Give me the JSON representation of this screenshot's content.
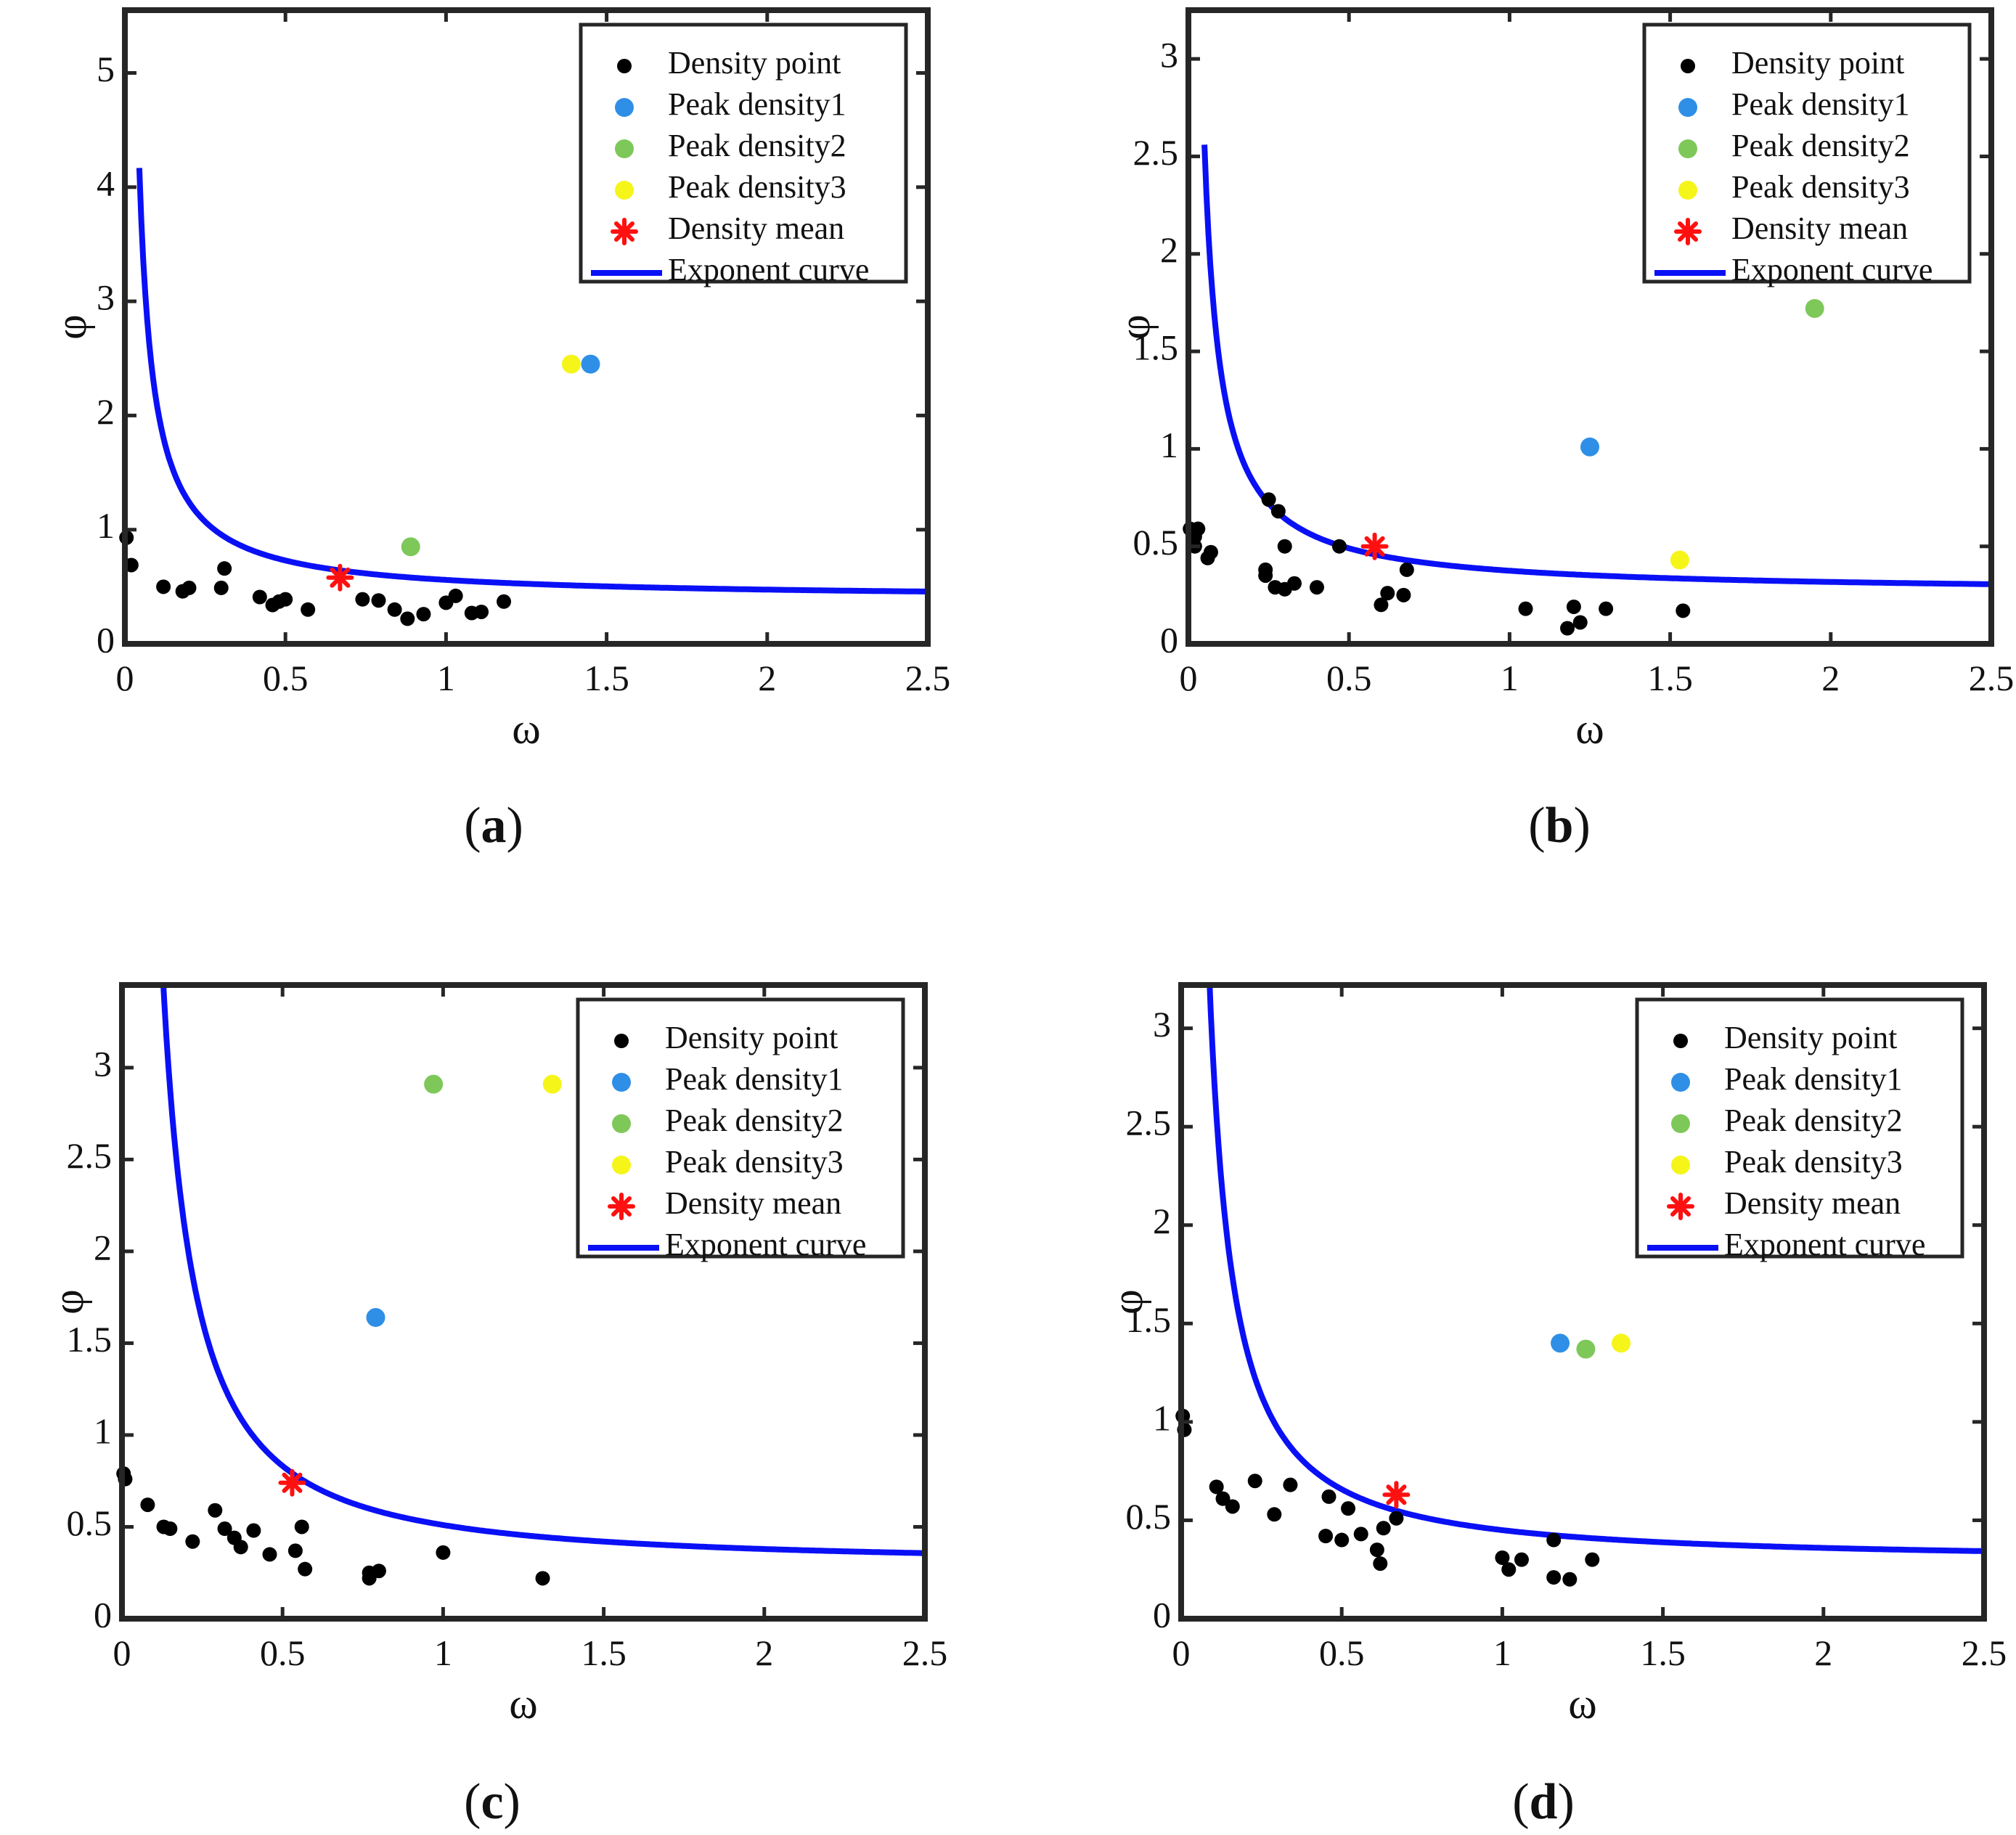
{
  "chart_data": [
    {
      "type": "scatter",
      "panel_label": "a",
      "xlabel": "ω",
      "ylabel": "φ",
      "xlim": [
        0,
        2.5
      ],
      "ylim": [
        0,
        5.55
      ],
      "x_ticks": [
        "0",
        "0.5",
        "1",
        "1.5",
        "2",
        "2.5"
      ],
      "x_tick_values": [
        0,
        0.5,
        1,
        1.5,
        2,
        2.5
      ],
      "y_ticks": [
        "0",
        "1",
        "2",
        "3",
        "4",
        "5"
      ],
      "y_tick_values": [
        0,
        1,
        2,
        3,
        4,
        5
      ],
      "legend": {
        "position": "top-right",
        "entries": [
          "Density point",
          "Peak density1",
          "Peak density2",
          "Peak density3",
          "Density mean",
          "Exponent curve"
        ]
      },
      "series": [
        {
          "name": "Density point",
          "marker": "dot",
          "color": "#000000",
          "x": [
            0.005,
            0.02,
            0.12,
            0.18,
            0.2,
            0.3,
            0.31,
            0.42,
            0.46,
            0.48,
            0.5,
            0.57,
            0.74,
            0.79,
            0.84,
            0.88,
            0.93,
            1.0,
            1.03,
            1.08,
            1.11,
            1.18
          ],
          "y": [
            0.93,
            0.69,
            0.5,
            0.46,
            0.49,
            0.49,
            0.66,
            0.41,
            0.34,
            0.37,
            0.39,
            0.3,
            0.39,
            0.38,
            0.3,
            0.22,
            0.26,
            0.36,
            0.42,
            0.27,
            0.28,
            0.37
          ]
        },
        {
          "name": "Peak density1",
          "marker": "dot",
          "color": "#2f8fe6",
          "x": [
            1.45
          ],
          "y": [
            2.45
          ]
        },
        {
          "name": "Peak density2",
          "marker": "dot",
          "color": "#7ec85a",
          "x": [
            0.89
          ],
          "y": [
            0.85
          ]
        },
        {
          "name": "Peak density3",
          "marker": "dot",
          "color": "#f5f51a",
          "x": [
            1.39
          ],
          "y": [
            2.45
          ]
        },
        {
          "name": "Density mean",
          "marker": "asterisk",
          "color": "#ff1010",
          "x": [
            0.67
          ],
          "y": [
            0.58
          ]
        },
        {
          "name": "Exponent curve",
          "marker": "line",
          "color": "#0a10f5",
          "curve": {
            "a": 0.17,
            "b": 0.39,
            "p": 1.0,
            "x_start": 0.045,
            "x_end": 2.5
          }
        }
      ]
    },
    {
      "type": "scatter",
      "panel_label": "b",
      "xlabel": "ω",
      "ylabel": "φ",
      "xlim": [
        0,
        2.5
      ],
      "ylim": [
        0,
        3.25
      ],
      "x_ticks": [
        "0",
        "0.5",
        "1",
        "1.5",
        "2",
        "2.5"
      ],
      "x_tick_values": [
        0,
        0.5,
        1,
        1.5,
        2,
        2.5
      ],
      "y_ticks": [
        "0",
        "0.5",
        "1",
        "1.5",
        "2",
        "2.5",
        "3"
      ],
      "y_tick_values": [
        0,
        0.5,
        1,
        1.5,
        2,
        2.5,
        3
      ],
      "legend": {
        "position": "top-right",
        "entries": [
          "Density point",
          "Peak density1",
          "Peak density2",
          "Peak density3",
          "Density mean",
          "Exponent curve"
        ]
      },
      "series": [
        {
          "name": "Density point",
          "marker": "dot",
          "color": "#000000",
          "x": [
            0.005,
            0.02,
            0.03,
            0.02,
            0.06,
            0.07,
            0.24,
            0.24,
            0.25,
            0.27,
            0.28,
            0.3,
            0.3,
            0.33,
            0.4,
            0.47,
            0.6,
            0.62,
            0.67,
            0.68,
            1.05,
            1.18,
            1.2,
            1.22,
            1.3,
            1.54
          ],
          "y": [
            0.59,
            0.55,
            0.59,
            0.5,
            0.44,
            0.47,
            0.38,
            0.35,
            0.74,
            0.29,
            0.68,
            0.28,
            0.5,
            0.31,
            0.29,
            0.5,
            0.2,
            0.26,
            0.25,
            0.38,
            0.18,
            0.08,
            0.19,
            0.11,
            0.18,
            0.17
          ]
        },
        {
          "name": "Peak density1",
          "marker": "dot",
          "color": "#2f8fe6",
          "x": [
            1.25
          ],
          "y": [
            1.01
          ]
        },
        {
          "name": "Peak density2",
          "marker": "dot",
          "color": "#7ec85a",
          "x": [
            1.95
          ],
          "y": [
            1.72
          ]
        },
        {
          "name": "Peak density3",
          "marker": "dot",
          "color": "#f5f51a",
          "x": [
            1.53
          ],
          "y": [
            0.43
          ]
        },
        {
          "name": "Density mean",
          "marker": "asterisk",
          "color": "#ff1010",
          "x": [
            0.58
          ],
          "y": [
            0.5
          ]
        },
        {
          "name": "Exponent curve",
          "marker": "line",
          "color": "#0a10f5",
          "curve": {
            "a": 0.115,
            "b": 0.26,
            "p": 1.0,
            "x_start": 0.05,
            "x_end": 2.5
          }
        }
      ]
    },
    {
      "type": "scatter",
      "panel_label": "c",
      "xlabel": "ω",
      "ylabel": "φ",
      "xlim": [
        0,
        2.5
      ],
      "ylim": [
        0,
        3.45
      ],
      "x_ticks": [
        "0",
        "0.5",
        "1",
        "1.5",
        "2",
        "2.5"
      ],
      "x_tick_values": [
        0,
        0.5,
        1,
        1.5,
        2,
        2.5
      ],
      "y_ticks": [
        "0",
        "0.5",
        "1",
        "1.5",
        "2",
        "2.5",
        "3"
      ],
      "y_tick_values": [
        0,
        0.5,
        1,
        1.5,
        2,
        2.5,
        3
      ],
      "legend": {
        "position": "top-right",
        "entries": [
          "Density point",
          "Peak density1",
          "Peak density2",
          "Peak density3",
          "Density mean",
          "Exponent curve"
        ]
      },
      "series": [
        {
          "name": "Density point",
          "marker": "dot",
          "color": "#000000",
          "x": [
            0.005,
            0.01,
            0.08,
            0.13,
            0.15,
            0.22,
            0.29,
            0.32,
            0.35,
            0.37,
            0.41,
            0.46,
            0.54,
            0.56,
            0.57,
            0.77,
            0.77,
            0.8,
            1.0,
            1.31
          ],
          "y": [
            0.79,
            0.76,
            0.62,
            0.5,
            0.49,
            0.42,
            0.59,
            0.49,
            0.44,
            0.39,
            0.48,
            0.35,
            0.37,
            0.5,
            0.27,
            0.25,
            0.22,
            0.26,
            0.36,
            0.22
          ]
        },
        {
          "name": "Peak density1",
          "marker": "dot",
          "color": "#2f8fe6",
          "x": [
            0.79
          ],
          "y": [
            1.64
          ]
        },
        {
          "name": "Peak density2",
          "marker": "dot",
          "color": "#7ec85a",
          "x": [
            0.97
          ],
          "y": [
            2.91
          ]
        },
        {
          "name": "Peak density3",
          "marker": "dot",
          "color": "#f5f51a",
          "x": [
            1.34
          ],
          "y": [
            2.91
          ]
        },
        {
          "name": "Density mean",
          "marker": "asterisk",
          "color": "#ff1010",
          "x": [
            0.53
          ],
          "y": [
            0.74
          ]
        },
        {
          "name": "Exponent curve",
          "marker": "line",
          "color": "#0a10f5",
          "curve": {
            "a": 0.22,
            "b": 0.29,
            "p": 1.3,
            "x_start": 0.09,
            "x_end": 2.5
          }
        }
      ]
    },
    {
      "type": "scatter",
      "panel_label": "d",
      "xlabel": "ω",
      "ylabel": "φ",
      "xlim": [
        0,
        2.5
      ],
      "ylim": [
        0,
        3.22
      ],
      "x_ticks": [
        "0",
        "0.5",
        "1",
        "1.5",
        "2",
        "2.5"
      ],
      "x_tick_values": [
        0,
        0.5,
        1,
        1.5,
        2,
        2.5
      ],
      "y_ticks": [
        "0",
        "0.5",
        "1",
        "1.5",
        "2",
        "2.5",
        "3"
      ],
      "y_tick_values": [
        0,
        0.5,
        1,
        1.5,
        2,
        2.5,
        3
      ],
      "legend": {
        "position": "top-right",
        "entries": [
          "Density point",
          "Peak density1",
          "Peak density2",
          "Peak density3",
          "Density mean",
          "Exponent curve"
        ]
      },
      "series": [
        {
          "name": "Density point",
          "marker": "dot",
          "color": "#000000",
          "x": [
            0.005,
            0.01,
            0.11,
            0.13,
            0.16,
            0.23,
            0.29,
            0.34,
            0.45,
            0.46,
            0.5,
            0.52,
            0.56,
            0.61,
            0.62,
            0.63,
            0.67,
            1.0,
            1.02,
            1.06,
            1.16,
            1.16,
            1.21,
            1.28
          ],
          "y": [
            1.03,
            0.96,
            0.67,
            0.61,
            0.57,
            0.7,
            0.53,
            0.68,
            0.42,
            0.62,
            0.4,
            0.56,
            0.43,
            0.35,
            0.28,
            0.46,
            0.51,
            0.31,
            0.25,
            0.3,
            0.21,
            0.4,
            0.2,
            0.3
          ]
        },
        {
          "name": "Peak density1",
          "marker": "dot",
          "color": "#2f8fe6",
          "x": [
            1.18
          ],
          "y": [
            1.4
          ]
        },
        {
          "name": "Peak density2",
          "marker": "dot",
          "color": "#7ec85a",
          "x": [
            1.26
          ],
          "y": [
            1.37
          ]
        },
        {
          "name": "Peak density3",
          "marker": "dot",
          "color": "#f5f51a",
          "x": [
            1.37
          ],
          "y": [
            1.4
          ]
        },
        {
          "name": "Density mean",
          "marker": "asterisk",
          "color": "#ff1010",
          "x": [
            0.67
          ],
          "y": [
            0.63
          ]
        },
        {
          "name": "Exponent curve",
          "marker": "line",
          "color": "#0a10f5",
          "curve": {
            "a": 0.16,
            "b": 0.29,
            "p": 1.2,
            "x_start": 0.08,
            "x_end": 2.5
          }
        }
      ]
    }
  ],
  "captions": [
    {
      "open": "(",
      "letter": "a",
      "close": ")"
    },
    {
      "open": "(",
      "letter": "b",
      "close": ")"
    },
    {
      "open": "(",
      "letter": "c",
      "close": ")"
    },
    {
      "open": "(",
      "letter": "d",
      "close": ")"
    }
  ]
}
